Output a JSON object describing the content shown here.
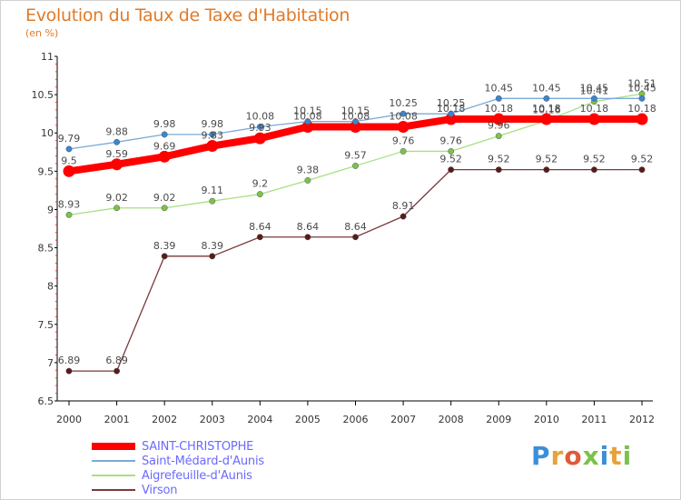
{
  "header": {
    "title": "Evolution du Taux de Taxe d'Habitation",
    "subtitle": "(en %)"
  },
  "logo": {
    "text": "Proxiti",
    "letter_colors": [
      "#3b8fd8",
      "#e8a23a",
      "#e05a3a",
      "#7cc24a",
      "#3b8fd8",
      "#e8a23a",
      "#7cc24a"
    ]
  },
  "chart_data": {
    "type": "line",
    "x": [
      "2000",
      "2001",
      "2002",
      "2003",
      "2004",
      "2005",
      "2006",
      "2007",
      "2008",
      "2009",
      "2010",
      "2011",
      "2012"
    ],
    "ylim": [
      6.5,
      11
    ],
    "yticks": [
      "6.5",
      "7",
      "7.5",
      "8",
      "8.5",
      "9",
      "9.5",
      "10",
      "10.5",
      "11"
    ],
    "ytick_values": [
      6.5,
      7,
      7.5,
      8,
      8.5,
      9,
      9.5,
      10,
      10.5,
      11
    ],
    "grid": false,
    "legend_position": "bottom-left",
    "series": [
      {
        "name": "SAINT-CHRISTOPHE",
        "color": "#ff0000",
        "marker_color": "#ff0000",
        "width": 8,
        "values": [
          9.5,
          9.59,
          9.69,
          9.83,
          9.93,
          10.08,
          10.08,
          10.08,
          10.18,
          10.18,
          10.18,
          10.18,
          10.18
        ],
        "labels": [
          "9.5",
          "9.59",
          "9.69",
          "9.83",
          "9.93",
          "10.08",
          "10.08",
          "10.08",
          "10.18",
          "10.18",
          "10.18",
          "10.18",
          "10.18"
        ]
      },
      {
        "name": "Saint-Médard-d'Aunis",
        "color": "#7aaad8",
        "marker_color": "#3a86d0",
        "width": 1.3,
        "values": [
          9.79,
          9.88,
          9.98,
          9.98,
          10.08,
          10.15,
          10.15,
          10.25,
          10.25,
          10.45,
          10.45,
          10.45,
          10.45
        ],
        "labels": [
          "9.79",
          "9.88",
          "9.98",
          "9.98",
          "10.08",
          "10.15",
          "10.15",
          "10.25",
          "10.25",
          "10.45",
          "10.45",
          "10.45",
          "10.45"
        ]
      },
      {
        "name": "Aigrefeuille-d'Aunis",
        "color": "#a8e080",
        "marker_color": "#7cc24a",
        "width": 1.3,
        "values": [
          8.93,
          9.02,
          9.02,
          9.11,
          9.2,
          9.38,
          9.57,
          9.76,
          9.76,
          9.96,
          10.16,
          10.41,
          10.51
        ],
        "labels": [
          "8.93",
          "9.02",
          "9.02",
          "9.11",
          "9.2",
          "9.38",
          "9.57",
          "9.76",
          "9.76",
          "9.96",
          "10.16",
          "10.41",
          "10.51"
        ]
      },
      {
        "name": "Virson",
        "color": "#7a3a3a",
        "marker_color": "#5a1a1a",
        "width": 1.3,
        "values": [
          6.89,
          6.89,
          8.39,
          8.39,
          8.64,
          8.64,
          8.64,
          8.91,
          9.52,
          9.52,
          9.52,
          9.52,
          9.52
        ],
        "labels": [
          "6.89",
          "6.89",
          "8.39",
          "8.39",
          "8.64",
          "8.64",
          "8.64",
          "8.91",
          "9.52",
          "9.52",
          "9.52",
          "9.52",
          "9.52"
        ]
      }
    ]
  }
}
